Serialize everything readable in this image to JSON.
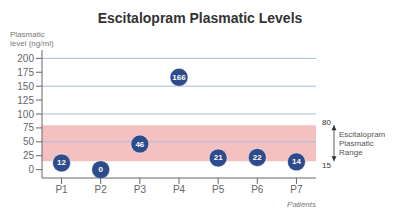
{
  "chart_data": {
    "type": "scatter",
    "title": "Escitalopram Plasmatic Levels",
    "xlabel": "Patients",
    "ylabel": "Plasmatic\nlevel (ng/ml)",
    "categories": [
      "P1",
      "P2",
      "P3",
      "P4",
      "P5",
      "P6",
      "P7"
    ],
    "values": [
      12,
      0,
      46,
      166,
      21,
      22,
      14
    ],
    "color": "#2e4b8c",
    "data_labels": true,
    "ylim": [
      -15,
      215
    ],
    "yticks": [
      0,
      25,
      50,
      75,
      100,
      125,
      150,
      175,
      200
    ],
    "grid": false,
    "reference_lines": {
      "values": [
        50,
        100,
        150,
        200
      ],
      "color": "#aabcdd"
    },
    "shaded_range": {
      "low": 15,
      "high": 80,
      "low_label": "15",
      "high_label": "80",
      "label": "Escitalopram\nPlasmatic\nRange",
      "color": "#f5c0c0"
    }
  }
}
